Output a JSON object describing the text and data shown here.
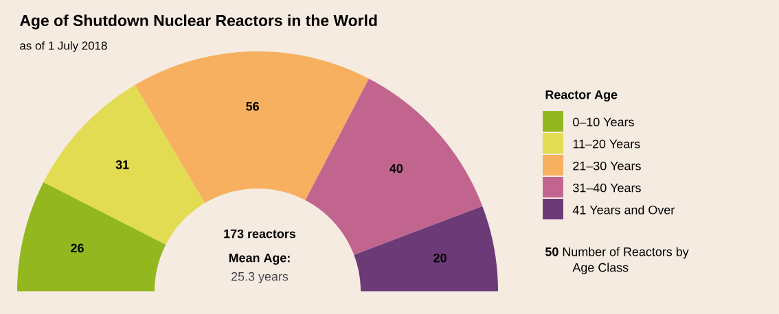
{
  "chart_data": {
    "type": "donut",
    "title": "Age of Shutdown Nuclear Reactors in the World",
    "subtitle": "as of 1 July 2018",
    "legend_title": "Reactor Age",
    "categories": [
      "0–10 Years",
      "11–20 Years",
      "21–30 Years",
      "31–40 Years",
      "41 Years and Over"
    ],
    "values": [
      26,
      31,
      56,
      40,
      20
    ],
    "colors": [
      "#92b71f",
      "#e2dc52",
      "#f6b05f",
      "#c2658e",
      "#6d3a78"
    ],
    "data_labels": true,
    "legend": "right",
    "annotations": [
      "173 reactors",
      "Mean Age:",
      "25.3 years",
      "**50** Number of Reactors by Age Class"
    ]
  }
}
